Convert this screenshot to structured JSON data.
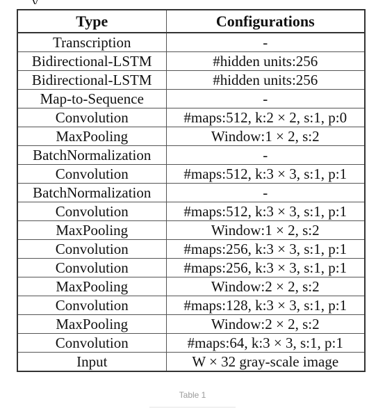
{
  "table": {
    "headers": [
      "Type",
      "Configurations"
    ],
    "rows": [
      [
        "Transcription",
        "-"
      ],
      [
        "Bidirectional-LSTM",
        "#hidden units:256"
      ],
      [
        "Bidirectional-LSTM",
        "#hidden units:256"
      ],
      [
        "Map-to-Sequence",
        "-"
      ],
      [
        "Convolution",
        "#maps:512, k:2 × 2, s:1, p:0"
      ],
      [
        "MaxPooling",
        "Window:1 × 2, s:2"
      ],
      [
        "BatchNormalization",
        "-"
      ],
      [
        "Convolution",
        "#maps:512, k:3 × 3, s:1, p:1"
      ],
      [
        "BatchNormalization",
        "-"
      ],
      [
        "Convolution",
        "#maps:512, k:3 × 3, s:1, p:1"
      ],
      [
        "MaxPooling",
        "Window:1 × 2, s:2"
      ],
      [
        "Convolution",
        "#maps:256, k:3 × 3, s:1, p:1"
      ],
      [
        "Convolution",
        "#maps:256, k:3 × 3, s:1, p:1"
      ],
      [
        "MaxPooling",
        "Window:2 × 2, s:2"
      ],
      [
        "Convolution",
        "#maps:128, k:3 × 3, s:1, p:1"
      ],
      [
        "MaxPooling",
        "Window:2 × 2, s:2"
      ],
      [
        "Convolution",
        "#maps:64, k:3 × 3, s:1, p:1"
      ],
      [
        "Input",
        "W × 32 gray-scale image"
      ]
    ]
  },
  "caption": "Table 1",
  "colors": {
    "text": "#111111",
    "border": "#333333",
    "caption": "#9a9a9a"
  }
}
